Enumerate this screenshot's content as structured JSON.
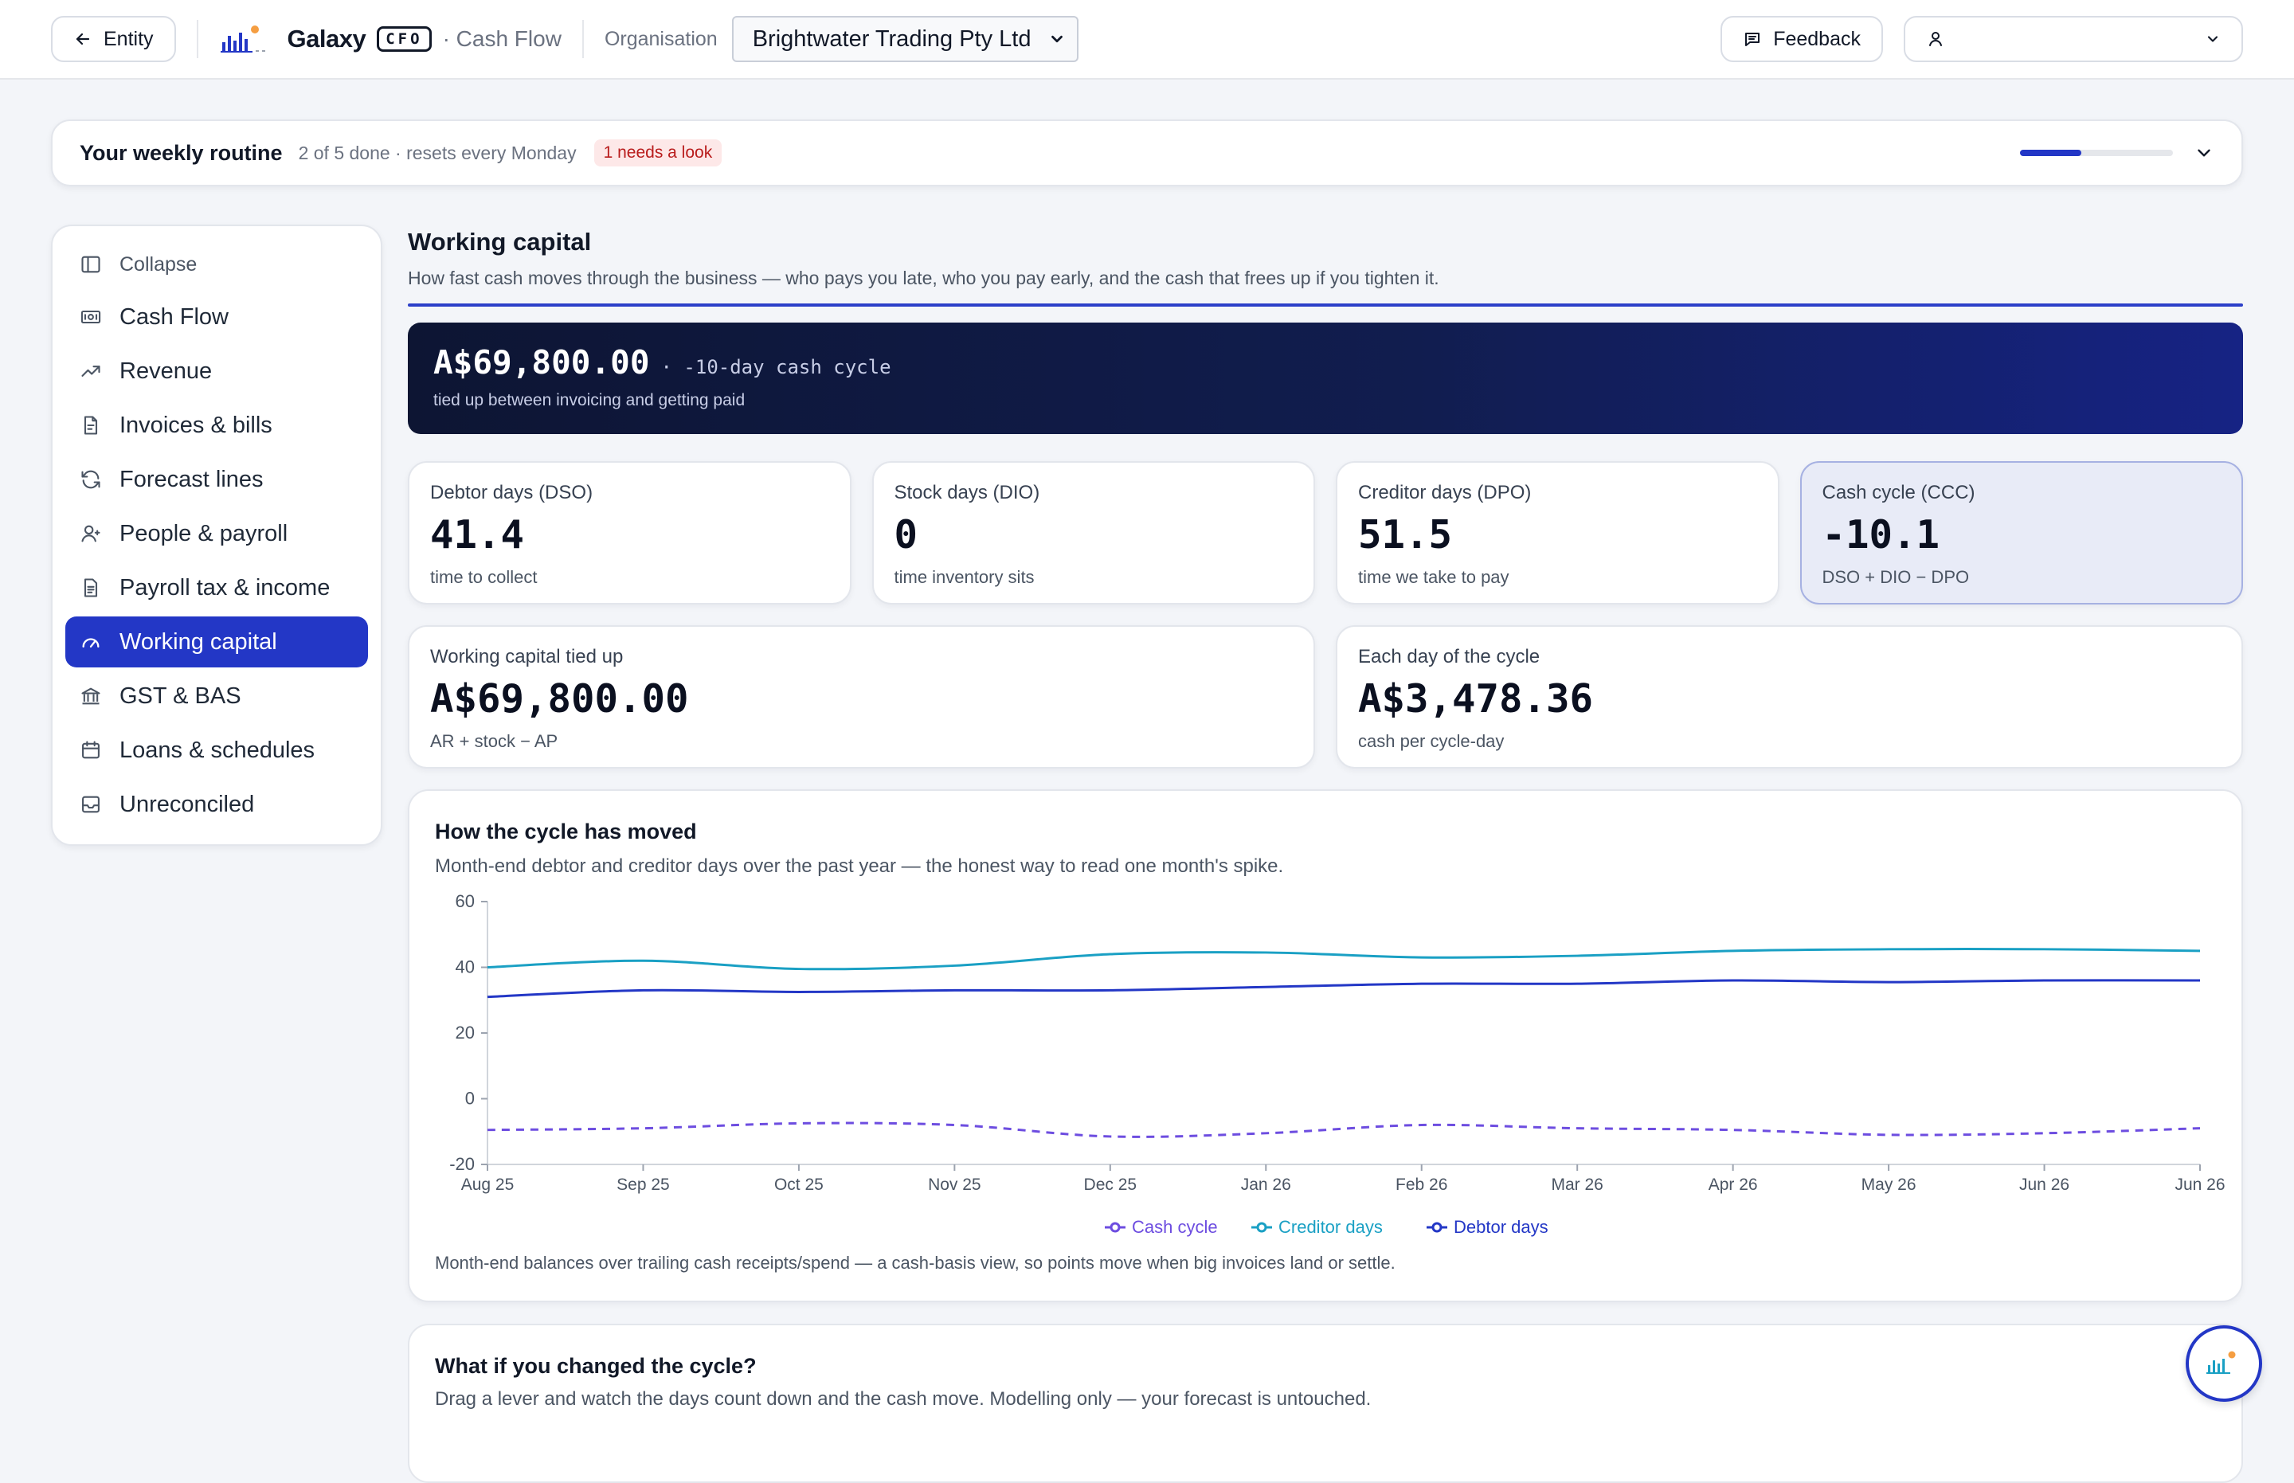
{
  "topbar": {
    "back_label": "Entity",
    "brand_name": "Galaxy",
    "brand_badge": "CFO",
    "brand_sub": "· Cash Flow",
    "org_label": "Organisation",
    "org_value": "Brightwater Trading Pty Ltd",
    "feedback_label": "Feedback",
    "user_value": ""
  },
  "routine": {
    "title": "Your weekly routine",
    "meta": "2 of 5 done · resets every Monday",
    "badge": "1 needs a look",
    "progress": 0.4
  },
  "sidebar": {
    "collapse_label": "Collapse",
    "items": [
      {
        "label": "Cash Flow",
        "icon": "banknote-icon"
      },
      {
        "label": "Revenue",
        "icon": "trending-up-icon"
      },
      {
        "label": "Invoices & bills",
        "icon": "file-invoice-icon"
      },
      {
        "label": "Forecast lines",
        "icon": "refresh-icon"
      },
      {
        "label": "People & payroll",
        "icon": "user-icon"
      },
      {
        "label": "Payroll tax & income",
        "icon": "document-icon"
      },
      {
        "label": "Working capital",
        "icon": "gauge-icon",
        "active": true
      },
      {
        "label": "GST & BAS",
        "icon": "bank-icon"
      },
      {
        "label": "Loans & schedules",
        "icon": "calendar-icon"
      },
      {
        "label": "Unreconciled",
        "icon": "inbox-icon"
      }
    ]
  },
  "main": {
    "title": "Working capital",
    "description": "How fast cash moves through the business — who pays you late, who you pay early, and the cash that frees up if you tighten it.",
    "hero": {
      "amount": "A$69,800.00",
      "cycle": "· -10-day cash cycle",
      "sub": "tied up between invoicing and getting paid"
    },
    "metrics": [
      {
        "label": "Debtor days (DSO)",
        "value": "41.4",
        "sub": "time to collect"
      },
      {
        "label": "Stock days (DIO)",
        "value": "0",
        "sub": "time inventory sits"
      },
      {
        "label": "Creditor days (DPO)",
        "value": "51.5",
        "sub": "time we take to pay"
      },
      {
        "label": "Cash cycle (CCC)",
        "value": "-10.1",
        "sub": "DSO + DIO − DPO"
      }
    ],
    "summary": [
      {
        "label": "Working capital tied up",
        "value": "A$69,800.00",
        "sub": "AR + stock − AP"
      },
      {
        "label": "Each day of the cycle",
        "value": "A$3,478.36",
        "sub": "cash per cycle-day"
      }
    ],
    "chart": {
      "title": "How the cycle has moved",
      "subtitle": "Month-end debtor and creditor days over the past year — the honest way to read one month's spike.",
      "note": "Month-end balances over trailing cash receipts/spend — a cash-basis view, so points move when big invoices land or settle."
    },
    "whatif": {
      "title": "What if you changed the cycle?",
      "subtitle": "Drag a lever and watch the days count down and the cash move. Modelling only — your forecast is untouched."
    }
  },
  "chart_data": {
    "type": "line",
    "categories": [
      "Aug 25",
      "Sep 25",
      "Oct 25",
      "Nov 25",
      "Dec 25",
      "Jan 26",
      "Feb 26",
      "Mar 26",
      "Apr 26",
      "May 26",
      "Jun 26",
      "Jun 26"
    ],
    "ylim": [
      -20,
      60
    ],
    "yticks": [
      60,
      40,
      20,
      0,
      -20
    ],
    "grid": false,
    "legend": "bottom-center",
    "series": [
      {
        "name": "Cash cycle",
        "color": "#6d4de0",
        "dashed": true,
        "values": [
          -9.5,
          -9,
          -7.5,
          -8,
          -11.5,
          -10.5,
          -8,
          -9,
          -9.5,
          -11,
          -10.5,
          -9
        ]
      },
      {
        "name": "Creditor days",
        "color": "#1aa0c4",
        "dashed": false,
        "values": [
          40,
          42,
          39.5,
          40.5,
          44,
          44.5,
          43,
          43.5,
          45,
          45.5,
          45.5,
          45
        ]
      },
      {
        "name": "Debtor days",
        "color": "#2337c6",
        "dashed": false,
        "values": [
          31,
          33,
          32.5,
          33,
          33,
          34,
          35,
          35,
          36,
          35.5,
          36,
          36
        ]
      }
    ]
  }
}
